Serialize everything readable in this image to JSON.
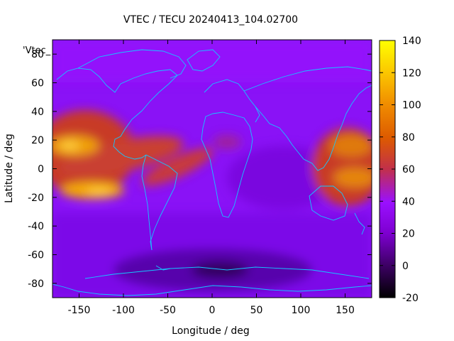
{
  "chart_data": {
    "type": "heatmap",
    "title": "VTEC / TECU 20240413_104.02700",
    "xlabel": "Longitude / deg",
    "ylabel": "Latitude / deg",
    "series_label": "'Vtec_",
    "xlim": [
      -180,
      180
    ],
    "ylim": [
      -90,
      90
    ],
    "x_ticks": [
      -150,
      -100,
      -50,
      0,
      50,
      100,
      150
    ],
    "y_ticks": [
      -80,
      -60,
      -40,
      -20,
      0,
      20,
      40,
      60,
      80
    ],
    "colorbar": {
      "min": -20,
      "max": 140,
      "ticks": [
        -20,
        0,
        20,
        40,
        60,
        80,
        100,
        120,
        140
      ],
      "palette": "gnuplot-hot (black-purple-red-orange-yellow)"
    },
    "grid": false,
    "features": [
      {
        "name": "equatorial-anomaly-pacific-north",
        "lon": -165,
        "lat": 14,
        "value": 100
      },
      {
        "name": "equatorial-anomaly-pacific-south",
        "lon": -140,
        "lat": -16,
        "value": 105
      },
      {
        "name": "equatorial-anomaly-west-pacific",
        "lon": 165,
        "lat": -2,
        "value": 85
      },
      {
        "name": "south-atlantic-band",
        "lon": -40,
        "lat": 0,
        "value": 70
      },
      {
        "name": "antarctic-minimum",
        "lon": 10,
        "lat": -70,
        "value": 0
      }
    ]
  }
}
